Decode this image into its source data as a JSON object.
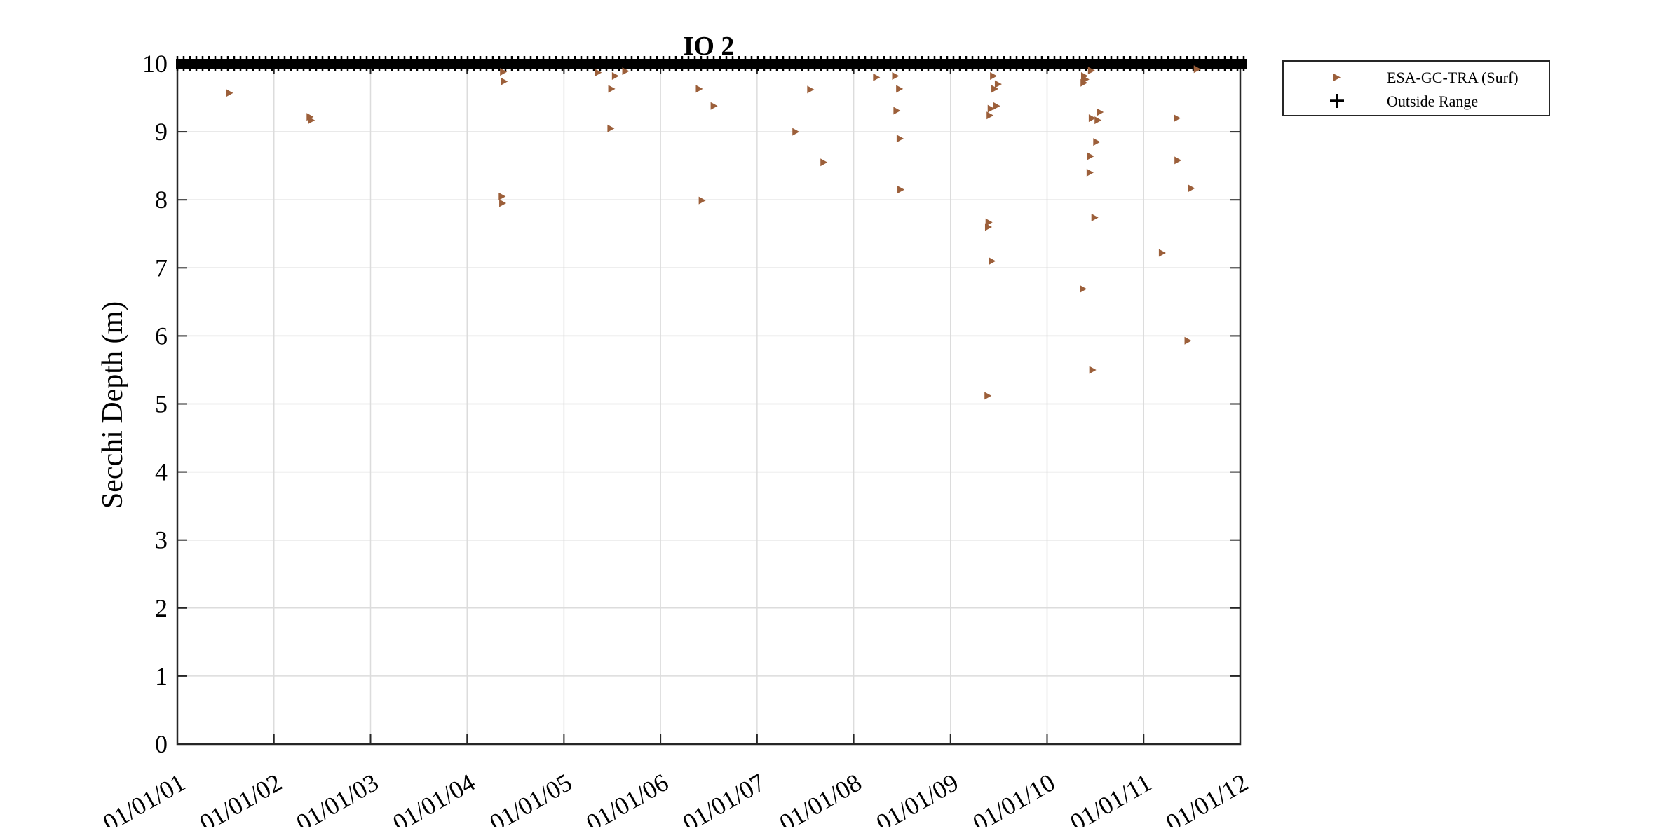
{
  "chart_data": {
    "type": "scatter",
    "title": "IO 2",
    "xlabel": "",
    "ylabel": "Secchi Depth (m)",
    "ylim": [
      0,
      10
    ],
    "xlim": [
      "2001-01-01",
      "2012-01-01"
    ],
    "x_tick_labels": [
      "01/01/01",
      "01/01/02",
      "01/01/03",
      "01/01/04",
      "01/01/05",
      "01/01/06",
      "01/01/07",
      "01/01/08",
      "01/01/09",
      "01/01/10",
      "01/01/11",
      "01/01/12"
    ],
    "y_ticks": [
      0,
      1,
      2,
      3,
      4,
      5,
      6,
      7,
      8,
      9,
      10
    ],
    "grid": true,
    "legend_position": "outside-top-right",
    "colors": {
      "series": "#9c5f3a",
      "outside": "#000000",
      "grid": "#dcdcdc",
      "axis": "#262626"
    },
    "legend": [
      {
        "label": "ESA-GC-TRA (Surf)",
        "marker": "triangle-right"
      },
      {
        "label": "Outside Range",
        "marker": "plus"
      }
    ],
    "series": [
      {
        "name": "ESA-GC-TRA (Surf)",
        "marker": "triangle-right",
        "x": [
          "2001-07-15",
          "2002-05-15",
          "2002-05-20",
          "2004-05-10",
          "2004-05-12",
          "2004-05-15",
          "2004-05-18",
          "2005-05-08",
          "2005-06-25",
          "2005-06-28",
          "2005-07-12",
          "2005-08-20",
          "2006-05-25",
          "2006-06-05",
          "2006-07-20",
          "2007-05-25",
          "2007-07-20",
          "2007-09-08",
          "2008-03-25",
          "2008-06-05",
          "2008-06-10",
          "2008-06-20",
          "2008-06-22",
          "2008-06-25",
          "2009-05-20",
          "2009-05-22",
          "2009-05-24",
          "2009-05-28",
          "2009-06-01",
          "2009-06-05",
          "2009-06-10",
          "2009-06-15",
          "2009-06-22",
          "2009-06-28",
          "2010-05-15",
          "2010-05-18",
          "2010-05-20",
          "2010-05-25",
          "2010-06-10",
          "2010-06-12",
          "2010-06-15",
          "2010-06-18",
          "2010-06-20",
          "2010-06-28",
          "2010-07-05",
          "2010-07-10",
          "2010-07-18",
          "2011-03-10",
          "2011-05-05",
          "2011-05-08",
          "2011-06-15",
          "2011-06-28",
          "2011-07-20"
        ],
        "y": [
          9.57,
          9.22,
          9.17,
          8.05,
          7.95,
          9.88,
          9.74,
          9.87,
          9.05,
          9.63,
          9.82,
          9.89,
          9.63,
          7.99,
          9.38,
          9.0,
          9.62,
          8.55,
          9.8,
          9.82,
          9.31,
          9.63,
          8.9,
          8.15,
          5.12,
          7.6,
          7.67,
          9.24,
          9.34,
          7.1,
          9.82,
          9.63,
          9.38,
          9.7,
          6.69,
          9.72,
          9.82,
          9.77,
          8.4,
          8.64,
          9.9,
          9.2,
          5.5,
          7.74,
          8.85,
          9.17,
          9.29,
          7.22,
          9.2,
          8.58,
          5.93,
          8.17,
          9.92
        ]
      }
    ]
  }
}
